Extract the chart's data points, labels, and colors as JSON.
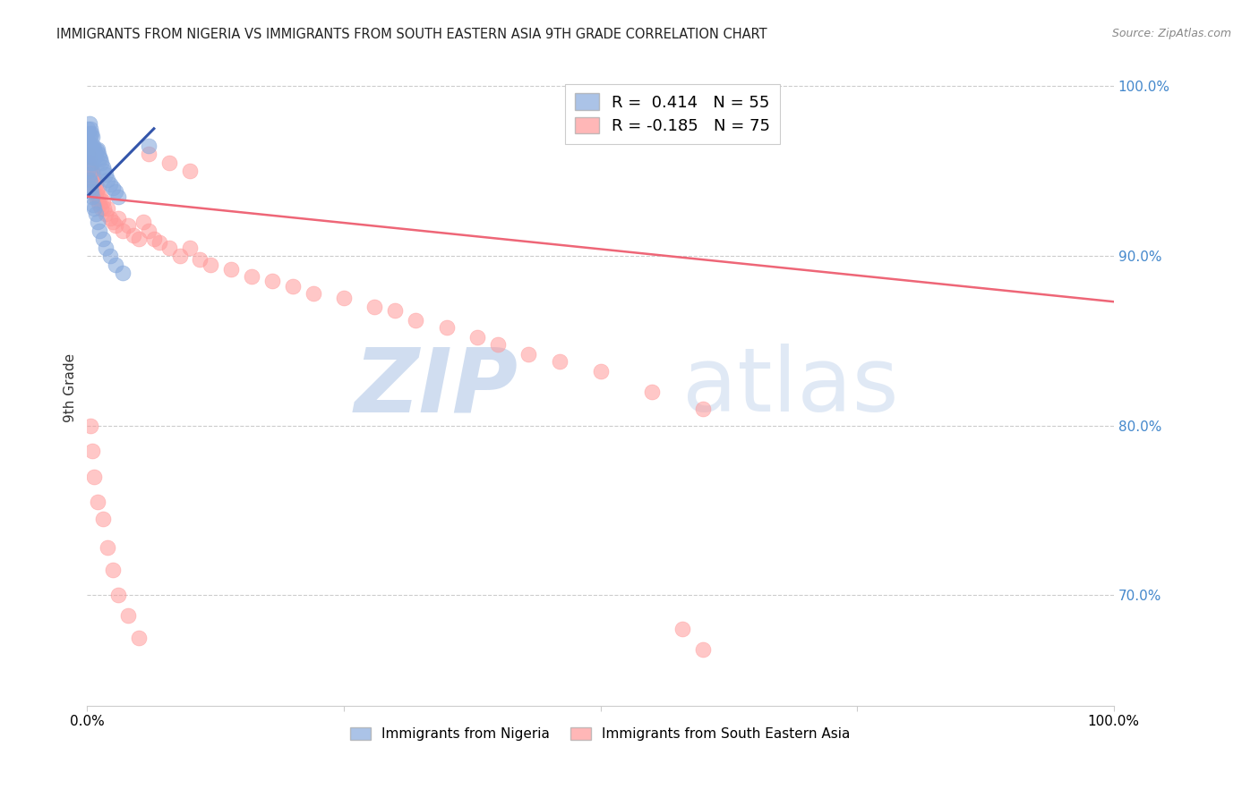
{
  "title": "IMMIGRANTS FROM NIGERIA VS IMMIGRANTS FROM SOUTH EASTERN ASIA 9TH GRADE CORRELATION CHART",
  "source": "Source: ZipAtlas.com",
  "ylabel": "9th Grade",
  "right_yticks": [
    "100.0%",
    "90.0%",
    "80.0%",
    "70.0%"
  ],
  "right_ytick_positions": [
    1.0,
    0.9,
    0.8,
    0.7
  ],
  "blue_color": "#88AADD",
  "pink_color": "#FF9999",
  "blue_line_color": "#3355AA",
  "pink_line_color": "#EE6677",
  "watermark_zip": "ZIP",
  "watermark_atlas": "atlas",
  "nigeria_x": [
    0.001,
    0.001,
    0.001,
    0.002,
    0.002,
    0.002,
    0.002,
    0.003,
    0.003,
    0.003,
    0.003,
    0.003,
    0.004,
    0.004,
    0.004,
    0.005,
    0.005,
    0.005,
    0.006,
    0.006,
    0.007,
    0.007,
    0.008,
    0.009,
    0.01,
    0.011,
    0.012,
    0.013,
    0.014,
    0.015,
    0.016,
    0.018,
    0.02,
    0.022,
    0.025,
    0.028,
    0.03,
    0.001,
    0.002,
    0.002,
    0.003,
    0.003,
    0.004,
    0.005,
    0.006,
    0.007,
    0.008,
    0.01,
    0.012,
    0.015,
    0.018,
    0.022,
    0.028,
    0.035,
    0.06
  ],
  "nigeria_y": [
    0.96,
    0.968,
    0.975,
    0.96,
    0.965,
    0.972,
    0.978,
    0.958,
    0.962,
    0.97,
    0.975,
    0.955,
    0.96,
    0.965,
    0.972,
    0.955,
    0.963,
    0.97,
    0.958,
    0.965,
    0.958,
    0.963,
    0.96,
    0.962,
    0.963,
    0.96,
    0.958,
    0.957,
    0.955,
    0.952,
    0.95,
    0.948,
    0.945,
    0.942,
    0.94,
    0.938,
    0.935,
    0.95,
    0.945,
    0.948,
    0.94,
    0.943,
    0.938,
    0.935,
    0.93,
    0.928,
    0.925,
    0.92,
    0.915,
    0.91,
    0.905,
    0.9,
    0.895,
    0.89,
    0.965
  ],
  "sea_x": [
    0.001,
    0.001,
    0.002,
    0.002,
    0.003,
    0.003,
    0.004,
    0.004,
    0.005,
    0.005,
    0.006,
    0.006,
    0.007,
    0.008,
    0.008,
    0.009,
    0.01,
    0.01,
    0.011,
    0.012,
    0.013,
    0.014,
    0.015,
    0.016,
    0.018,
    0.02,
    0.022,
    0.025,
    0.028,
    0.03,
    0.035,
    0.04,
    0.045,
    0.05,
    0.055,
    0.06,
    0.065,
    0.07,
    0.08,
    0.09,
    0.1,
    0.11,
    0.12,
    0.14,
    0.16,
    0.18,
    0.2,
    0.22,
    0.25,
    0.28,
    0.3,
    0.32,
    0.35,
    0.38,
    0.4,
    0.43,
    0.46,
    0.5,
    0.55,
    0.6,
    0.003,
    0.005,
    0.007,
    0.01,
    0.015,
    0.02,
    0.025,
    0.03,
    0.04,
    0.05,
    0.06,
    0.08,
    0.1,
    0.58,
    0.6
  ],
  "sea_y": [
    0.96,
    0.955,
    0.958,
    0.95,
    0.955,
    0.948,
    0.952,
    0.945,
    0.95,
    0.943,
    0.948,
    0.94,
    0.945,
    0.942,
    0.935,
    0.938,
    0.94,
    0.932,
    0.935,
    0.93,
    0.935,
    0.928,
    0.932,
    0.928,
    0.925,
    0.928,
    0.922,
    0.92,
    0.918,
    0.922,
    0.915,
    0.918,
    0.912,
    0.91,
    0.92,
    0.915,
    0.91,
    0.908,
    0.905,
    0.9,
    0.905,
    0.898,
    0.895,
    0.892,
    0.888,
    0.885,
    0.882,
    0.878,
    0.875,
    0.87,
    0.868,
    0.862,
    0.858,
    0.852,
    0.848,
    0.842,
    0.838,
    0.832,
    0.82,
    0.81,
    0.8,
    0.785,
    0.77,
    0.755,
    0.745,
    0.728,
    0.715,
    0.7,
    0.688,
    0.675,
    0.96,
    0.955,
    0.95,
    0.68,
    0.668
  ],
  "blue_line_x": [
    0.0,
    0.065
  ],
  "blue_line_y": [
    0.935,
    0.975
  ],
  "pink_line_x": [
    0.0,
    1.0
  ],
  "pink_line_y": [
    0.935,
    0.873
  ],
  "xlim": [
    0.0,
    1.0
  ],
  "ylim": [
    0.635,
    1.01
  ]
}
